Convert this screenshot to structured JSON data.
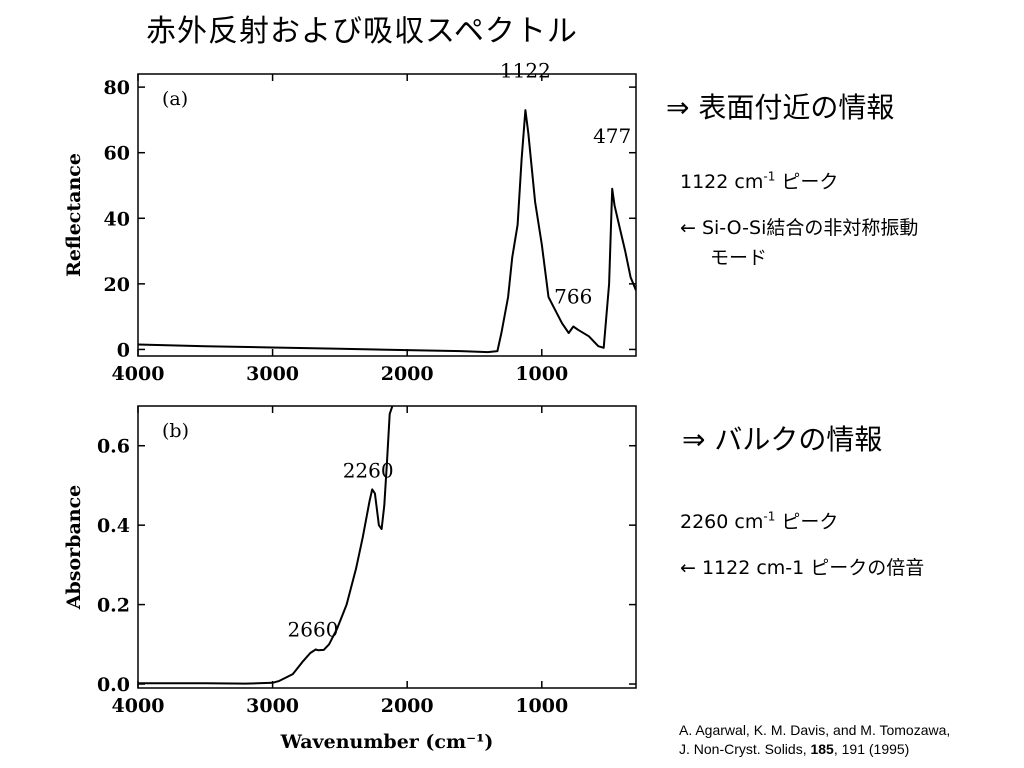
{
  "title": "赤外反射および吸収スペクトル",
  "notes": {
    "surface_heading": "⇒ 表面付近の情報",
    "peak1_value": "1122 cm",
    "peak1_exp": "-1",
    "peak1_suffix": " ピーク",
    "peak1_desc_line1": "← Si-O-Si結合の非対称振動",
    "peak1_desc_line2": "モード",
    "bulk_heading": "⇒ バルクの情報",
    "peak2_value": "2260 cm",
    "peak2_exp": "-1",
    "peak2_suffix": " ピーク",
    "peak2_desc": "← 1122 cm-1 ピークの倍音"
  },
  "reference": {
    "line1": "A. Agarwal, K. M. Davis, and M. Tomozawa,",
    "line2_prefix": "J. Non-Cryst. Solids, ",
    "line2_volume": "185",
    "line2_suffix": ", 191 (1995)"
  },
  "chart_data": [
    {
      "type": "line",
      "panel_label": "(a)",
      "ylabel": "Reflectance",
      "xlim": [
        4000,
        300
      ],
      "ylim": [
        -2,
        84
      ],
      "xticks": [
        4000,
        3000,
        2000,
        1000
      ],
      "yticks": [
        0,
        20,
        40,
        60,
        80
      ],
      "grid": false,
      "annotations": [
        {
          "text": "1122",
          "x": 1122,
          "y": 83
        },
        {
          "text": "766",
          "x": 766,
          "y": 14
        },
        {
          "text": "477",
          "x": 477,
          "y": 63
        }
      ],
      "x": [
        4000,
        3500,
        3000,
        2500,
        2000,
        1600,
        1400,
        1330,
        1300,
        1250,
        1220,
        1180,
        1150,
        1122,
        1100,
        1050,
        1000,
        950,
        900,
        850,
        800,
        766,
        730,
        650,
        580,
        540,
        500,
        477,
        460,
        420,
        380,
        340,
        300
      ],
      "y": [
        1.5,
        1.0,
        0.6,
        0.2,
        -0.2,
        -0.5,
        -0.8,
        -0.5,
        5,
        16,
        28,
        38,
        58,
        73,
        66,
        45,
        32,
        16,
        12,
        8,
        5,
        7,
        6,
        4,
        1,
        0.5,
        20,
        49,
        44,
        37,
        30,
        22,
        18
      ]
    },
    {
      "type": "line",
      "panel_label": "(b)",
      "xlabel": "Wavenumber (cm⁻¹)",
      "ylabel": "Absorbance",
      "xlim": [
        4000,
        300
      ],
      "ylim": [
        -0.01,
        0.7
      ],
      "xticks": [
        4000,
        3000,
        2000,
        1000
      ],
      "yticks": [
        0.0,
        0.2,
        0.4,
        0.6
      ],
      "ytick_labels": [
        "0.0",
        "0.2",
        "0.4",
        "0.6"
      ],
      "grid": false,
      "annotations": [
        {
          "text": "2660",
          "x": 2700,
          "y": 0.12
        },
        {
          "text": "2260",
          "x": 2290,
          "y": 0.52
        }
      ],
      "x": [
        4000,
        3800,
        3500,
        3200,
        3000,
        2950,
        2850,
        2780,
        2720,
        2680,
        2660,
        2620,
        2580,
        2520,
        2450,
        2380,
        2330,
        2280,
        2260,
        2240,
        2210,
        2190,
        2170,
        2150,
        2130,
        2110
      ],
      "y": [
        0.002,
        0.002,
        0.002,
        0.001,
        0.003,
        0.008,
        0.025,
        0.055,
        0.078,
        0.087,
        0.085,
        0.086,
        0.1,
        0.14,
        0.2,
        0.29,
        0.37,
        0.46,
        0.49,
        0.48,
        0.4,
        0.39,
        0.45,
        0.56,
        0.68,
        0.7
      ]
    }
  ]
}
